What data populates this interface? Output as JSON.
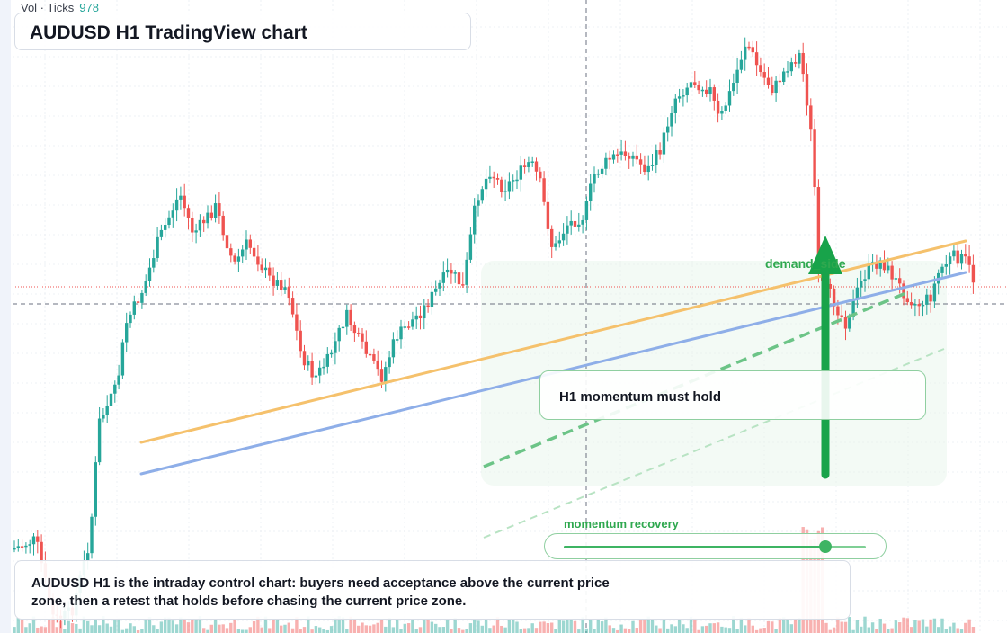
{
  "header": {
    "volume_label": "Vol · Ticks",
    "volume_value": "978",
    "chart_title": "AUDUSD H1 TradingView chart"
  },
  "annotations": {
    "callout_text": "H1 momentum must hold",
    "zone_label": "demand_side",
    "momentum_label": "momentum recovery",
    "momentum_level": 0.86
  },
  "note": {
    "text": "AUDUSD H1 is the intraday control chart: buyers need acceptance above the current price zone, then a retest that holds before chasing the current price zone."
  },
  "colors": {
    "up": "#26a69a",
    "down": "#ef5350",
    "trend_orange": "#f5c16c",
    "trend_blue": "#8eaee8",
    "accent_green": "#2fa84f"
  }
}
